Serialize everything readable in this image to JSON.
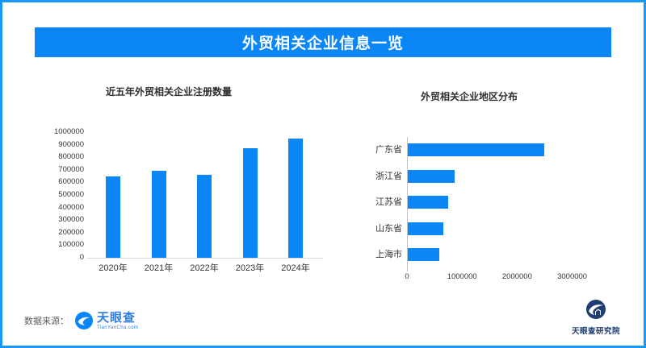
{
  "header": {
    "title": "外贸相关企业信息一览"
  },
  "footer": {
    "source_label": "数据来源：",
    "brand": "天眼查",
    "brand_sub": "TianYanCha.com",
    "institute": "天眼查研究院"
  },
  "colors": {
    "primary_blue": "#0b86f6",
    "frame_blue": "#1899fa",
    "brand_blue": "#2d7ee0",
    "institute_navy": "#1f3d70",
    "axis_text": "#333333",
    "source_gray": "#58595b",
    "axis_line_gray": "#d9d9d9"
  },
  "chart_data": [
    {
      "type": "bar",
      "title": "近五年外贸相关企业注册数量",
      "categories": [
        "2020年",
        "2021年",
        "2022年",
        "2023年",
        "2024年"
      ],
      "values": [
        645000,
        690000,
        660000,
        875000,
        950000
      ],
      "ylim": [
        0,
        1000000
      ],
      "yticks": [
        0,
        100000,
        200000,
        300000,
        400000,
        500000,
        600000,
        700000,
        800000,
        900000,
        1000000
      ],
      "grid": false,
      "legend": false,
      "bar_color": "#0b86f6"
    },
    {
      "type": "bar",
      "orientation": "horizontal",
      "title": "外贸相关企业地区分布",
      "categories": [
        "广东省",
        "浙江省",
        "江苏省",
        "山东省",
        "上海市"
      ],
      "values": [
        2480000,
        855000,
        730000,
        640000,
        565000
      ],
      "xlim": [
        0,
        3300000
      ],
      "xticks": [
        0,
        1000000,
        2000000,
        3000000
      ],
      "grid": false,
      "legend": false,
      "bar_color": "#0b86f6"
    }
  ]
}
